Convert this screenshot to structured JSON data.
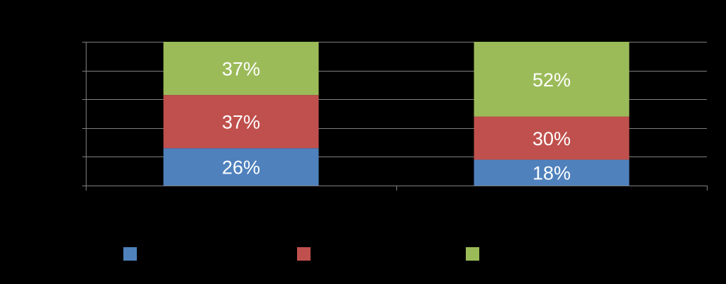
{
  "chart_data": {
    "type": "bar",
    "stacked": true,
    "categories": [
      "",
      ""
    ],
    "series": [
      {
        "values": [
          26,
          18
        ],
        "labels": [
          "26%",
          "18%"
        ],
        "color": "#4f81bd"
      },
      {
        "values": [
          37,
          30
        ],
        "labels": [
          "37%",
          "30%"
        ],
        "color": "#c0504d"
      },
      {
        "values": [
          37,
          52
        ],
        "labels": [
          "37%",
          "52%"
        ],
        "color": "#9bbb59"
      }
    ],
    "ylim": [
      0,
      100
    ],
    "grid": true,
    "legend_position": "bottom",
    "value_unit": "%"
  }
}
